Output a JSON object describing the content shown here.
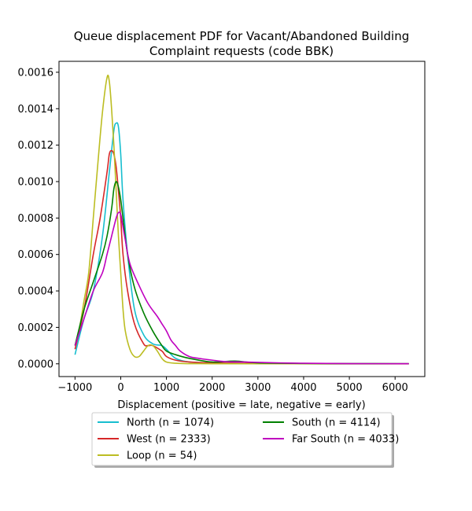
{
  "chart_data": {
    "type": "line",
    "title_lines": [
      "Queue displacement PDF for Vacant/Abandoned Building",
      "Complaint  requests (code BBK)"
    ],
    "xlabel": "Displacement (positive = late, negative = early)",
    "ylabel": "",
    "xlim": [
      -1350,
      6650
    ],
    "ylim": [
      -7e-05,
      0.00166
    ],
    "xticks": [
      -1000,
      0,
      1000,
      2000,
      3000,
      4000,
      5000,
      6000
    ],
    "xtick_labels": [
      "−1000",
      "0",
      "1000",
      "2000",
      "3000",
      "4000",
      "5000",
      "6000"
    ],
    "yticks": [
      0,
      0.0002,
      0.0004,
      0.0006,
      0.0008,
      0.001,
      0.0012,
      0.0014,
      0.0016
    ],
    "ytick_labels": [
      "0.0000",
      "0.0002",
      "0.0004",
      "0.0006",
      "0.0008",
      "0.0010",
      "0.0012",
      "0.0014",
      "0.0016"
    ],
    "grid": false,
    "legend_placement": "below plot, two columns",
    "series": [
      {
        "name": "North (n = 1074)",
        "color": "#17becf",
        "x": [
          -1000,
          -800,
          -600,
          -400,
          -250,
          -150,
          -100,
          -50,
          0,
          50,
          150,
          300,
          500,
          700,
          900,
          1000,
          1200,
          1500,
          2000,
          2500,
          3000,
          4000,
          5000,
          6300
        ],
        "y": [
          5e-05,
          0.00025,
          0.0004,
          0.0007,
          0.00105,
          0.00128,
          0.00132,
          0.0013,
          0.00115,
          0.0009,
          0.0006,
          0.0003,
          0.00016,
          0.00011,
          0.0001,
          8e-05,
          3e-05,
          1e-05,
          5e-06,
          3e-06,
          2e-06,
          1e-06,
          5e-07,
          2e-07
        ]
      },
      {
        "name": "West (n = 2333)",
        "color": "#d62728",
        "x": [
          -1000,
          -800,
          -600,
          -450,
          -300,
          -250,
          -200,
          -150,
          -100,
          -50,
          0,
          50,
          150,
          300,
          500,
          600,
          700,
          900,
          1000,
          1200,
          1500,
          2000,
          3000,
          4000,
          6300
        ],
        "y": [
          8e-05,
          0.0003,
          0.0006,
          0.0008,
          0.00105,
          0.00115,
          0.00117,
          0.00115,
          0.00108,
          0.00095,
          0.0008,
          0.0006,
          0.0004,
          0.00022,
          0.00011,
          0.0001,
          0.0001,
          7e-05,
          4e-05,
          2e-05,
          1e-05,
          5e-06,
          2e-06,
          1e-06,
          3e-07
        ]
      },
      {
        "name": "Loop (n = 54)",
        "color": "#bcbd22",
        "x": [
          -1000,
          -900,
          -800,
          -700,
          -600,
          -500,
          -400,
          -300,
          -250,
          -200,
          -150,
          -100,
          -50,
          0,
          50,
          100,
          200,
          300,
          400,
          500,
          600,
          700,
          800,
          900,
          1000,
          1200,
          1500,
          2000,
          3000,
          6300
        ],
        "y": [
          0.0001,
          0.0002,
          0.00035,
          0.0005,
          0.0008,
          0.0011,
          0.00138,
          0.00157,
          0.00155,
          0.0014,
          0.0012,
          0.00095,
          0.0007,
          0.0005,
          0.0003,
          0.00018,
          8e-05,
          4e-05,
          4e-05,
          7e-05,
          0.0001,
          0.0001,
          7e-05,
          3e-05,
          1e-05,
          3e-06,
          1e-06,
          5e-07,
          1e-07,
          0.0
        ]
      },
      {
        "name": "South (n = 4114)",
        "color": "#008000",
        "x": [
          -1000,
          -800,
          -600,
          -400,
          -300,
          -200,
          -150,
          -100,
          -50,
          0,
          50,
          150,
          300,
          500,
          700,
          900,
          1000,
          1200,
          1500,
          2000,
          2500,
          3000,
          4000,
          5000,
          6300
        ],
        "y": [
          0.0001,
          0.0003,
          0.00045,
          0.0006,
          0.0007,
          0.00085,
          0.00096,
          0.001,
          0.00097,
          0.0009,
          0.0008,
          0.0006,
          0.00042,
          0.00028,
          0.00018,
          0.0001,
          7e-05,
          5e-05,
          3e-05,
          1e-05,
          1.5e-05,
          5e-06,
          2e-06,
          1e-06,
          5e-07
        ]
      },
      {
        "name": "Far South (n = 4033)",
        "color": "#bf00bf",
        "x": [
          -1000,
          -800,
          -600,
          -400,
          -300,
          -200,
          -100,
          -50,
          0,
          50,
          100,
          200,
          400,
          600,
          800,
          900,
          1000,
          1100,
          1200,
          1300,
          1500,
          1700,
          2000,
          2300,
          2700,
          3000,
          3500,
          4000,
          5000,
          6300
        ],
        "y": [
          0.0001,
          0.00025,
          0.0004,
          0.0005,
          0.0006,
          0.0007,
          0.0008,
          0.00083,
          0.00082,
          0.00075,
          0.00068,
          0.00055,
          0.00043,
          0.00033,
          0.00026,
          0.00022,
          0.00018,
          0.00013,
          0.0001,
          7e-05,
          4e-05,
          3e-05,
          2e-05,
          1.2e-05,
          1e-05,
          8e-06,
          5e-06,
          3e-06,
          1e-06,
          5e-07
        ]
      }
    ]
  }
}
